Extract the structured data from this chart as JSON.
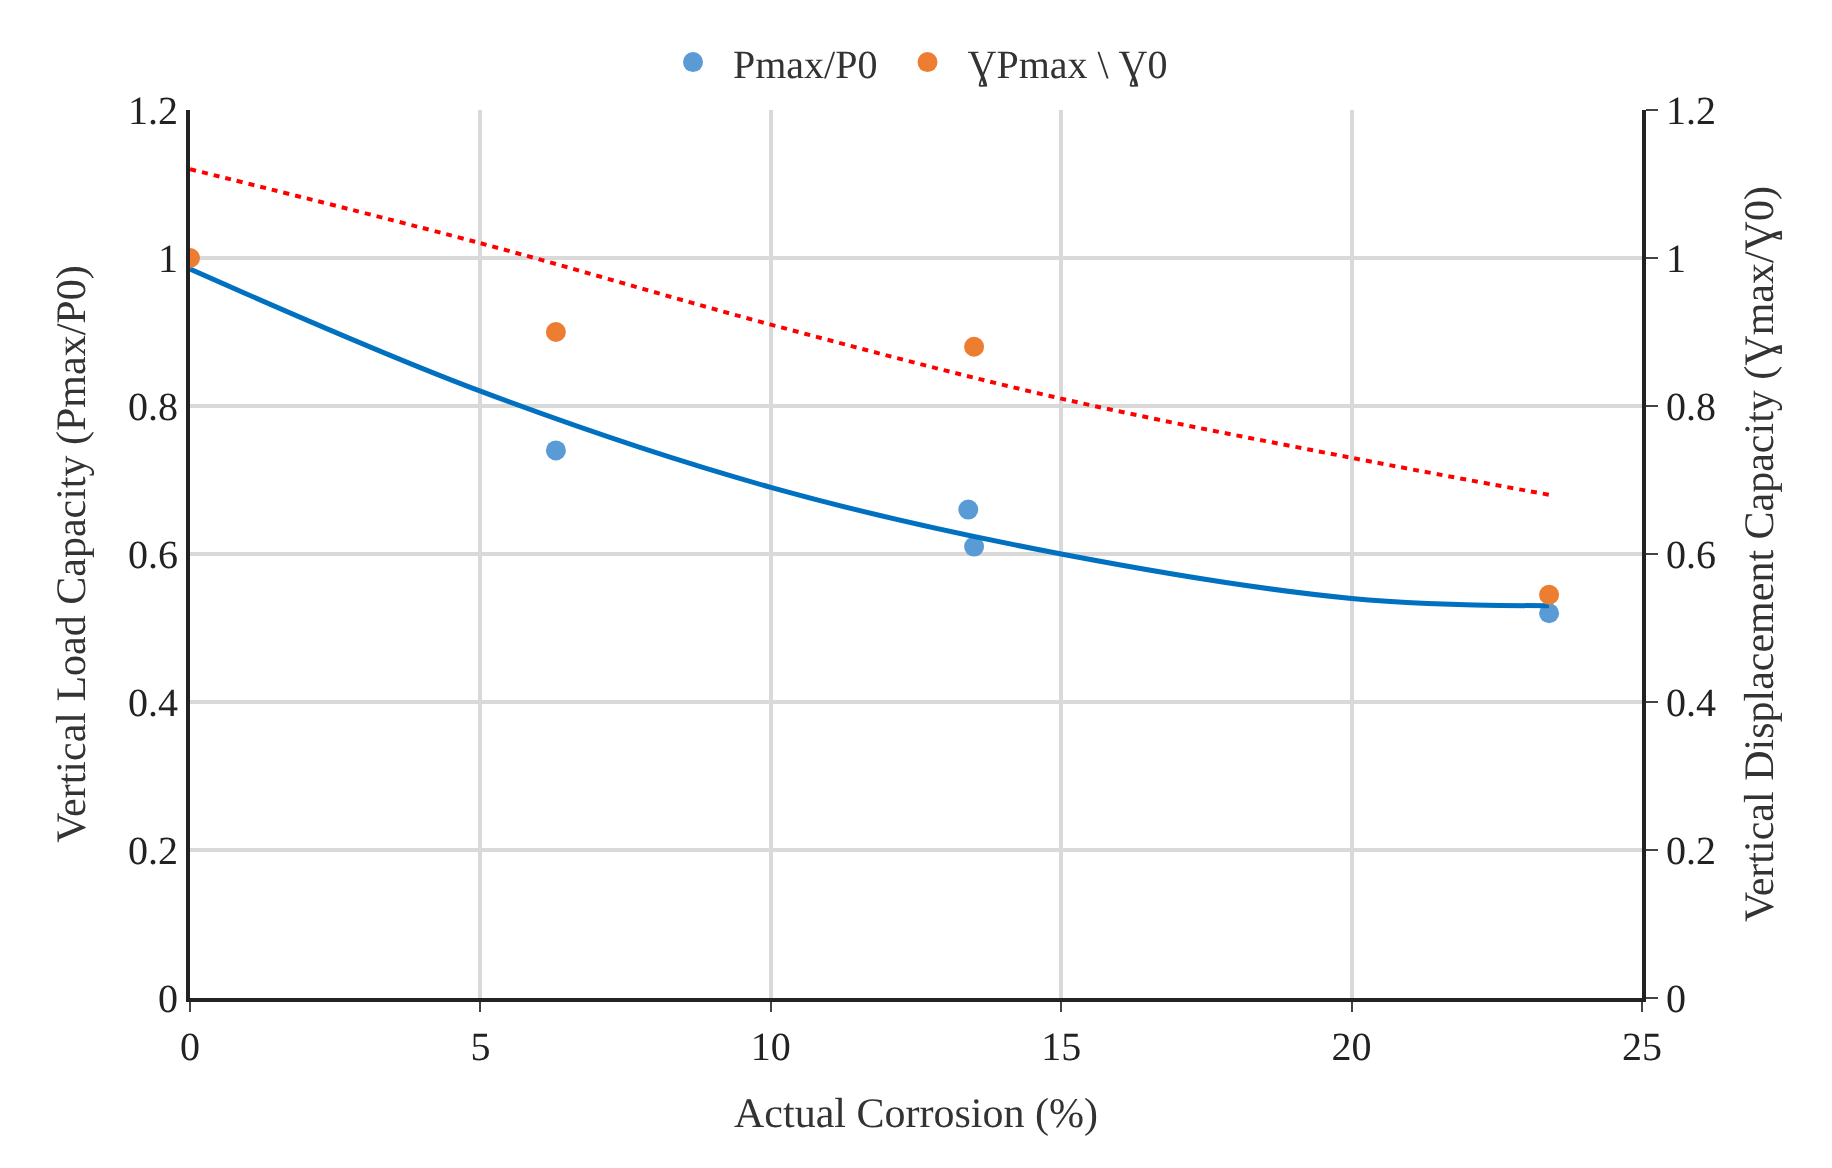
{
  "chart_data": {
    "type": "scatter",
    "xlabel": "Actual Corrosion (%)",
    "ylabel": "Vertical Load Capacity (Pmax/P0)",
    "y2label": "Vertical Displacement Capacity (Ɣmax/Ɣ0)",
    "xlim": [
      0,
      25
    ],
    "xticks": [
      0,
      5,
      10,
      15,
      20,
      25
    ],
    "ylim": [
      0,
      1.2
    ],
    "yticks": [
      0,
      0.2,
      0.4,
      0.6,
      0.8,
      1,
      1.2
    ],
    "y2lim": [
      0,
      1.2
    ],
    "y2ticks": [
      0,
      0.2,
      0.4,
      0.6,
      0.8,
      1,
      1.2
    ],
    "grid": true,
    "legend": "top",
    "marker": "circle",
    "series": [
      {
        "name": "Pmax/P0",
        "color": "#5b9bd5",
        "x": [
          6.3,
          13.4,
          13.5,
          23.4
        ],
        "values": [
          0.74,
          0.66,
          0.61,
          0.52
        ]
      },
      {
        "name": "ƔPmax \\ Ɣ0",
        "color": "#ed7d31",
        "axis": "y2",
        "x": [
          0,
          6.3,
          13.5,
          23.4
        ],
        "values": [
          1.0,
          0.9,
          0.88,
          0.545
        ]
      },
      {
        "type": "line",
        "color": "#0070c0",
        "marker": "none",
        "line_style": "solid",
        "x": [
          0,
          5,
          10,
          15,
          20,
          23.4
        ],
        "values": [
          0.985,
          0.82,
          0.69,
          0.6,
          0.54,
          0.53
        ]
      },
      {
        "type": "line",
        "color": "#ff0000",
        "marker": "none",
        "line_style": "dotted",
        "axis": "y2",
        "x": [
          0,
          5,
          10,
          15,
          20,
          23.4
        ],
        "values": [
          1.12,
          1.02,
          0.91,
          0.81,
          0.73,
          0.68
        ]
      }
    ]
  }
}
